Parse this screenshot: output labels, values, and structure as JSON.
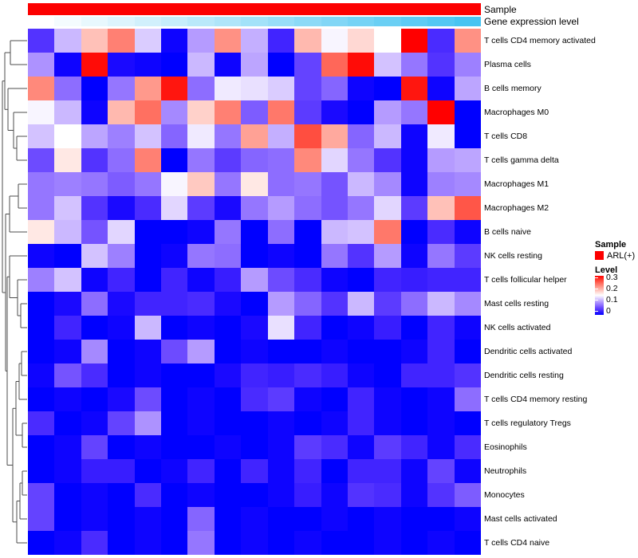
{
  "figure": {
    "type": "clustered-heatmap",
    "background": "#ffffff"
  },
  "top_annotations": {
    "sample_label": "Sample",
    "gene_label": "Gene expression level",
    "sample_color": "#FC0000",
    "gradient_start": "#FFFFFF",
    "gradient_end": "#47C4F2",
    "n_columns": 17
  },
  "legend": {
    "sample_title": "Sample",
    "sample_items": [
      {
        "label": "ARL(+)",
        "color": "#FC0000"
      }
    ],
    "level_title": "Level",
    "level_ticks": [
      "0.3",
      "0.2",
      "0.1",
      "0"
    ],
    "level_tick_values": [
      0.3,
      0.2,
      0.1,
      0
    ]
  },
  "chart_data": {
    "type": "heatmap",
    "title": "",
    "colormap": "blue-white-red",
    "value_range": [
      0,
      0.3
    ],
    "n_columns": 17,
    "columns_labeled": false,
    "rows": [
      "T cells CD4 memory activated",
      "Plasma cells",
      "B cells memory",
      "Macrophages M0",
      "T cells CD8",
      "T cells gamma delta",
      "Macrophages M1",
      "Macrophages M2",
      "B cells naive",
      "NK cells resting",
      "T cells follicular helper",
      "Mast cells resting",
      "NK cells activated",
      "Dendritic cells activated",
      "Dendritic cells resting",
      "T cells CD4 memory resting",
      "T cells regulatory  Tregs",
      "Eosinophils",
      "Neutrophils",
      "Monocytes",
      "Mast cells activated",
      "T cells CD4 naive"
    ],
    "values": [
      [
        0.04,
        0.115,
        0.19,
        0.23,
        0.125,
        0.005,
        0.1,
        0.22,
        0.11,
        0.03,
        0.195,
        0.145,
        0.175,
        0.15,
        0.3,
        0.035,
        0.22
      ],
      [
        0.095,
        0.005,
        0.295,
        0.01,
        0.005,
        0,
        0.115,
        0.005,
        0.105,
        0,
        0.05,
        0.245,
        0.295,
        0.12,
        0.08,
        0.04,
        0.085
      ],
      [
        0.225,
        0.075,
        0,
        0.08,
        0.215,
        0.29,
        0.075,
        0.14,
        0.135,
        0.125,
        0.05,
        0.07,
        0.005,
        0,
        0.29,
        0.005,
        0.105
      ],
      [
        0.145,
        0.115,
        0.005,
        0.195,
        0.24,
        0.09,
        0.18,
        0.23,
        0.065,
        0.235,
        0.045,
        0.01,
        0,
        0.1,
        0.08,
        0.3,
        0
      ],
      [
        0.12,
        0.15,
        0.105,
        0.085,
        0.12,
        0.07,
        0.14,
        0.08,
        0.21,
        0.11,
        0.26,
        0.205,
        0.07,
        0.115,
        0.005,
        0.14,
        0
      ],
      [
        0.055,
        0.165,
        0.04,
        0.075,
        0.23,
        0,
        0.08,
        0.045,
        0.07,
        0.075,
        0.225,
        0.13,
        0.08,
        0.04,
        0.005,
        0.1,
        0.105
      ],
      [
        0.08,
        0.085,
        0.08,
        0.065,
        0.08,
        0.145,
        0.185,
        0.08,
        0.165,
        0.075,
        0.08,
        0.06,
        0.115,
        0.09,
        0.005,
        0.085,
        0.09
      ],
      [
        0.08,
        0.12,
        0.04,
        0.01,
        0.035,
        0.13,
        0.045,
        0.01,
        0.08,
        0.1,
        0.075,
        0.06,
        0.08,
        0.13,
        0.045,
        0.19,
        0.255
      ],
      [
        0.165,
        0.115,
        0.06,
        0.13,
        0,
        0,
        0.005,
        0.08,
        0,
        0.075,
        0,
        0.115,
        0.12,
        0.235,
        0,
        0.035,
        0.005
      ],
      [
        0.005,
        0,
        0.12,
        0.085,
        0,
        0.005,
        0.08,
        0.075,
        0,
        0.005,
        0,
        0.08,
        0.04,
        0.1,
        0.005,
        0.08,
        0.045
      ],
      [
        0.085,
        0.12,
        0.005,
        0.03,
        0,
        0.03,
        0.005,
        0.025,
        0.1,
        0.055,
        0.035,
        0.005,
        0,
        0.03,
        0.025,
        0.03,
        0.03
      ],
      [
        0,
        0.01,
        0.075,
        0.01,
        0.03,
        0.03,
        0.035,
        0.01,
        0,
        0.1,
        0.07,
        0.04,
        0.115,
        0.045,
        0.075,
        0.115,
        0.09
      ],
      [
        0,
        0.03,
        0,
        0.005,
        0.115,
        0,
        0.005,
        0,
        0.01,
        0.135,
        0.03,
        0,
        0.005,
        0.025,
        0,
        0.03,
        0.005
      ],
      [
        0,
        0.005,
        0.09,
        0,
        0.005,
        0.055,
        0.1,
        0,
        0.005,
        0,
        0,
        0.005,
        0,
        0,
        0.005,
        0.03,
        0
      ],
      [
        0.005,
        0.06,
        0.035,
        0,
        0.005,
        0,
        0,
        0.01,
        0.03,
        0.025,
        0.035,
        0.025,
        0.005,
        0,
        0.03,
        0.03,
        0.04
      ],
      [
        0,
        0.005,
        0,
        0.01,
        0.055,
        0,
        0.005,
        0,
        0.035,
        0.045,
        0.005,
        0,
        0.03,
        0.005,
        0,
        0.005,
        0.075
      ],
      [
        0.035,
        0,
        0.005,
        0.05,
        0.095,
        0,
        0.005,
        0,
        0,
        0.005,
        0,
        0.005,
        0.03,
        0.005,
        0,
        0.005,
        0
      ],
      [
        0,
        0.005,
        0.05,
        0,
        0.005,
        0,
        0,
        0.005,
        0,
        0.005,
        0.045,
        0.035,
        0.005,
        0.045,
        0.03,
        0.005,
        0.035
      ],
      [
        0,
        0.005,
        0.025,
        0.025,
        0,
        0.005,
        0.03,
        0,
        0.03,
        0.005,
        0.03,
        0,
        0.03,
        0.03,
        0.005,
        0.05,
        0.005
      ],
      [
        0.05,
        0,
        0.005,
        0,
        0.035,
        0,
        0.005,
        0,
        0,
        0.005,
        0.025,
        0.005,
        0.04,
        0.035,
        0.005,
        0.04,
        0.065
      ],
      [
        0.05,
        0,
        0.005,
        0,
        0.005,
        0,
        0.07,
        0,
        0.005,
        0,
        0,
        0.005,
        0,
        0.005,
        0,
        0,
        0.005
      ],
      [
        0,
        0.005,
        0.035,
        0,
        0.005,
        0,
        0.08,
        0,
        0.005,
        0,
        0.005,
        0,
        0,
        0.005,
        0,
        0.005,
        0
      ]
    ]
  },
  "dendrogram": {
    "color": "#4d4d4d",
    "segments": [
      [
        13,
        51,
        34,
        51
      ],
      [
        13,
        81,
        34,
        81
      ],
      [
        13,
        51,
        13,
        81
      ],
      [
        21,
        171,
        34,
        171
      ],
      [
        21,
        201,
        34,
        201
      ],
      [
        21,
        171,
        21,
        201
      ],
      [
        17,
        141,
        34,
        141
      ],
      [
        17,
        186,
        21,
        186
      ],
      [
        17,
        141,
        17,
        186
      ],
      [
        10,
        111,
        34,
        111
      ],
      [
        10,
        163.5,
        17,
        163.5
      ],
      [
        10,
        111,
        10,
        163.5
      ],
      [
        6,
        66,
        13,
        66
      ],
      [
        6,
        137.3,
        10,
        137.3
      ],
      [
        6,
        66,
        6,
        137.3
      ],
      [
        23,
        231,
        34,
        231
      ],
      [
        23,
        261,
        34,
        261
      ],
      [
        23,
        231,
        23,
        261
      ],
      [
        12,
        246,
        23,
        246
      ],
      [
        12,
        291,
        34,
        291
      ],
      [
        12,
        246,
        12,
        291
      ],
      [
        26,
        381,
        34,
        381
      ],
      [
        26,
        411,
        34,
        411
      ],
      [
        26,
        381,
        26,
        411
      ],
      [
        22,
        351,
        34,
        351
      ],
      [
        22,
        396,
        26,
        396
      ],
      [
        22,
        351,
        22,
        396
      ],
      [
        12,
        321,
        34,
        321
      ],
      [
        12,
        373.5,
        22,
        373.5
      ],
      [
        12,
        321,
        12,
        373.5
      ],
      [
        27,
        441,
        34,
        441
      ],
      [
        27,
        471,
        34,
        471
      ],
      [
        27,
        441,
        27,
        471
      ],
      [
        24,
        456,
        27,
        456
      ],
      [
        24,
        501,
        34,
        501
      ],
      [
        24,
        456,
        24,
        501
      ],
      [
        28,
        531,
        34,
        531
      ],
      [
        28,
        561,
        34,
        561
      ],
      [
        28,
        531,
        28,
        561
      ],
      [
        20,
        478.5,
        24,
        478.5
      ],
      [
        20,
        546,
        28,
        546
      ],
      [
        20,
        478.5,
        20,
        546
      ],
      [
        28,
        591,
        34,
        591
      ],
      [
        28,
        621,
        34,
        621
      ],
      [
        28,
        591,
        28,
        621
      ],
      [
        25,
        606,
        28,
        606
      ],
      [
        25,
        651,
        34,
        651
      ],
      [
        25,
        606,
        25,
        651
      ],
      [
        21,
        628.5,
        25,
        628.5
      ],
      [
        21,
        681,
        34,
        681
      ],
      [
        21,
        628.5,
        21,
        681
      ],
      [
        16,
        512.3,
        20,
        512.3
      ],
      [
        16,
        654.8,
        21,
        654.8
      ],
      [
        16,
        512.3,
        16,
        654.8
      ],
      [
        9,
        347.3,
        12,
        347.3
      ],
      [
        9,
        583.5,
        16,
        583.5
      ],
      [
        9,
        347.3,
        9,
        583.5
      ],
      [
        7,
        268.5,
        12,
        268.5
      ],
      [
        7,
        465.4,
        9,
        465.4
      ],
      [
        7,
        268.5,
        7,
        465.4
      ],
      [
        3,
        101.6,
        6,
        101.6
      ],
      [
        3,
        367,
        7,
        367
      ],
      [
        3,
        101.6,
        3,
        367
      ]
    ]
  }
}
